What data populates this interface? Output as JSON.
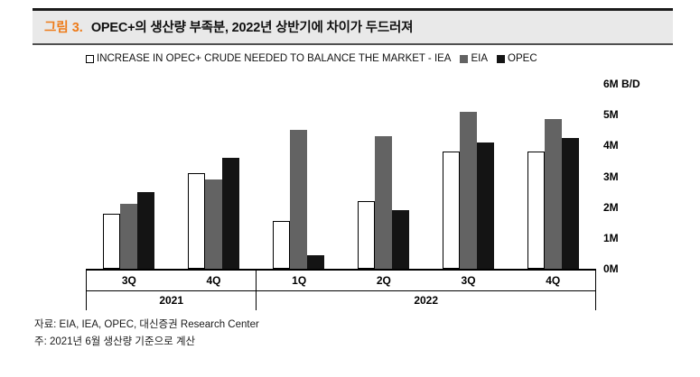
{
  "header": {
    "figure_label": "그림 3.",
    "title": "OPEC+의 생산량 부족분, 2022년 상반기에 차이가 두드러져"
  },
  "chart_data": {
    "type": "bar",
    "title": "INCREASE IN OPEC+ CRUDE NEEDED TO BALANCE THE MARKET - IEA",
    "legend_position": "top",
    "grid": false,
    "unit": "M B/D",
    "ylim": [
      0,
      6
    ],
    "yticks": [
      "0M",
      "1M",
      "2M",
      "3M",
      "4M",
      "5M",
      "6M B/D"
    ],
    "categories": [
      "3Q",
      "4Q",
      "1Q",
      "2Q",
      "3Q",
      "4Q"
    ],
    "category_groups": [
      {
        "label": "2021",
        "span": 2
      },
      {
        "label": "2022",
        "span": 4
      }
    ],
    "series": [
      {
        "key": "iea",
        "name": "INCREASE IN OPEC+ CRUDE NEEDED TO BALANCE THE MARKET - IEA",
        "fill": "#ffffff",
        "border": "#000000",
        "values": [
          1.8,
          3.1,
          1.55,
          2.2,
          3.8,
          3.8
        ]
      },
      {
        "key": "eia",
        "name": "EIA",
        "fill": "#636363",
        "border": null,
        "values": [
          2.1,
          2.9,
          4.5,
          4.3,
          5.1,
          4.85
        ]
      },
      {
        "key": "opec",
        "name": "OPEC",
        "fill": "#141414",
        "border": null,
        "values": [
          2.5,
          3.6,
          0.45,
          1.9,
          4.1,
          4.25
        ]
      }
    ]
  },
  "footer": {
    "source": "자료: EIA, IEA, OPEC, 대신증권 Research Center",
    "note": "주: 2021년 6월 생산량 기준으로 계산"
  },
  "colors": {
    "accent_orange": "#ee7b19",
    "header_band": "#e9e9e9",
    "bar_iea": "#ffffff",
    "bar_eia": "#636363",
    "bar_opec": "#141414"
  }
}
